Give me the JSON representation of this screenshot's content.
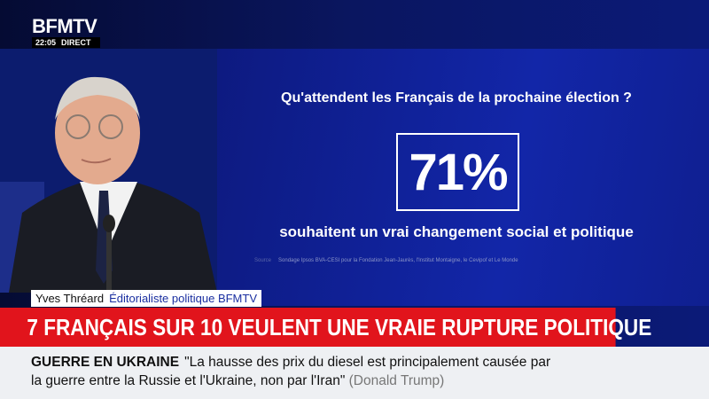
{
  "logo": "BFMTV",
  "clock": {
    "time": "22:05",
    "status": "DIRECT"
  },
  "graphic": {
    "question": "Qu'attendent les Français de la prochaine élection ?",
    "stat": "71%",
    "statement": "souhaitent un vrai changement social et politique",
    "source_label": "Source",
    "source": "Sondage Ipsos BVA-CESI pour la Fondation Jean-Jaurès, l'Institut Montaigne, le Cevipof et Le Monde"
  },
  "speaker": {
    "name": "Yves Thréard",
    "role": "Éditorialiste politique BFMTV"
  },
  "headline": "7 FRANÇAIS SUR 10 VEULENT UNE VRAIE RUPTURE POLITIQUE",
  "ticker": {
    "topic": "GUERRE EN UKRAINE",
    "quote": "\"La hausse des prix du diesel est principalement causée par la guerre entre la Russie et l'Ukraine, non par l'Iran\"",
    "author": "(Donald Trump)"
  }
}
